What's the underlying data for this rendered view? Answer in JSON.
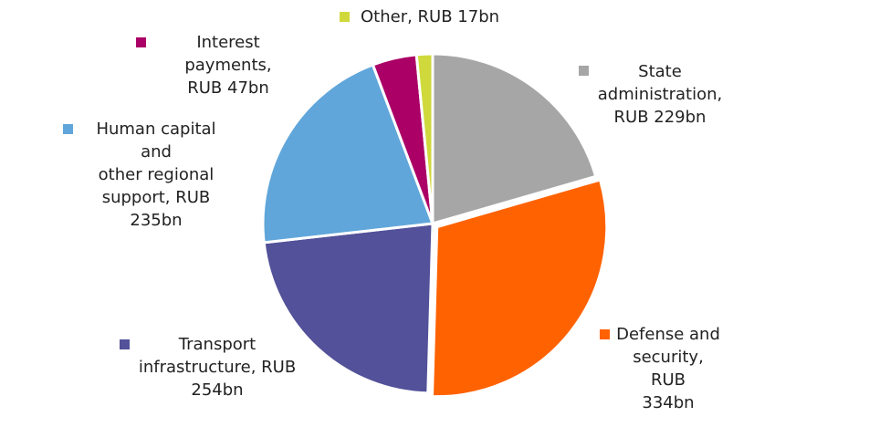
{
  "chart_data": {
    "type": "pie",
    "title": "",
    "unit": "RUB bn",
    "start_angle_deg": 0,
    "direction": "clockwise",
    "slices": [
      {
        "name": "State administration",
        "value": 229,
        "label": "State\nadministration,\nRUB 229bn",
        "color": "#A6A6A6"
      },
      {
        "name": "Defense and security",
        "value": 334,
        "label": "Defense and\nsecurity, RUB\n334bn",
        "color": "#FF6200",
        "exploded": true
      },
      {
        "name": "Transport infrastructure",
        "value": 254,
        "label": "Transport\ninfrastructure, RUB\n254bn",
        "color": "#525199"
      },
      {
        "name": "Human capital and other regional support",
        "value": 235,
        "label": "Human capital and\nother regional\nsupport, RUB\n235bn",
        "color": "#60A6DA"
      },
      {
        "name": "Interest payments",
        "value": 47,
        "label": "Interest payments,\nRUB 47bn",
        "color": "#AB0066"
      },
      {
        "name": "Other",
        "value": 17,
        "label": "Other, RUB 17bn",
        "color": "#D0D93C"
      }
    ],
    "legend_position": "around"
  }
}
